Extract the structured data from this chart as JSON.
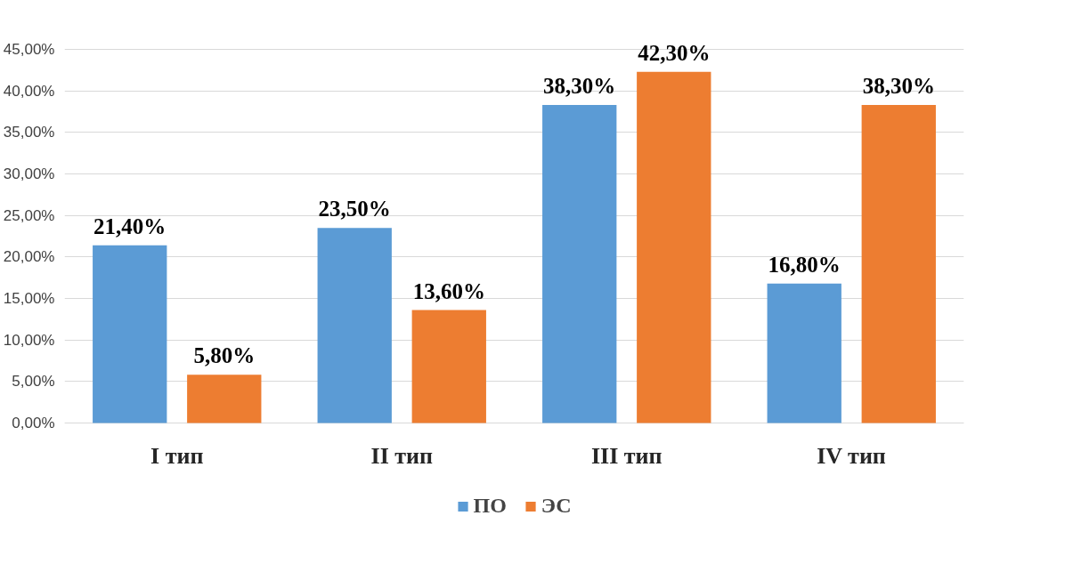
{
  "chart_data": {
    "type": "bar",
    "categories": [
      "I тип",
      "II тип",
      "III тип",
      "IV тип"
    ],
    "series": [
      {
        "name": "ПО",
        "color": "#5b9bd5",
        "values": [
          21.4,
          23.5,
          38.3,
          16.8
        ],
        "value_labels": [
          "21,40%",
          "23,50%",
          "38,30%",
          "16,80%"
        ]
      },
      {
        "name": "ЭС",
        "color": "#ed7d31",
        "values": [
          5.8,
          13.6,
          42.3,
          38.3
        ],
        "value_labels": [
          "5,80%",
          "13,60%",
          "42,30%",
          "38,30%"
        ]
      }
    ],
    "ylim": [
      0,
      45
    ],
    "yticks": [
      {
        "value": 0,
        "label": "0,00%"
      },
      {
        "value": 5,
        "label": "5,00%"
      },
      {
        "value": 10,
        "label": "10,00%"
      },
      {
        "value": 15,
        "label": "15,00%"
      },
      {
        "value": 20,
        "label": "20,00%"
      },
      {
        "value": 25,
        "label": "25,00%"
      },
      {
        "value": 30,
        "label": "30,00%"
      },
      {
        "value": 35,
        "label": "35,00%"
      },
      {
        "value": 40,
        "label": "40,00%"
      },
      {
        "value": 45,
        "label": "45,00%"
      }
    ],
    "grid": "y",
    "legend": "bottom"
  }
}
